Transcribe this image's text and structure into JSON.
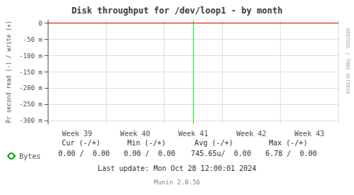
{
  "chart_data": {
    "type": "line",
    "title": "Disk throughput for /dev/loop1 - by month",
    "y_label": "Pr second read (-) / write (+)",
    "categories": [
      "Week 39",
      "Week 40",
      "Week 41",
      "Week 42",
      "Week 43"
    ],
    "series": [
      {
        "name": "Bytes",
        "color": "#00aa00",
        "values": [
          null,
          null,
          null,
          null,
          null
        ]
      }
    ],
    "vlines": [
      {
        "x": "Week 41",
        "color": "#00ff00"
      }
    ],
    "hlines": [
      {
        "y": 0,
        "color": "#cc0000"
      }
    ],
    "ylim": [
      -310,
      10
    ],
    "yticks": [
      0,
      {
        "value": -50,
        "label": "-50 m"
      },
      {
        "value": -100,
        "label": "-100 m"
      },
      {
        "value": -150,
        "label": "-150 m"
      },
      {
        "value": -200,
        "label": "-200 m"
      },
      {
        "value": -250,
        "label": "-250 m"
      },
      {
        "value": -300,
        "label": "-300 m"
      }
    ],
    "grid": true,
    "stats": {
      "headers": [
        "Cur (-/+)",
        "Min (-/+)",
        "Avg (-/+)",
        "Max (-/+)"
      ],
      "values": [
        "0.00 /  0.00",
        "0.00 /  0.00",
        "745.65u/  0.00",
        "6.78 /  0.00"
      ]
    },
    "footer": [
      "Last update: Mon Oct 28 12:00:01 2024",
      "Munin 2.0.56"
    ],
    "watermark": "RRDTOOL / TOBI OETIKER"
  }
}
